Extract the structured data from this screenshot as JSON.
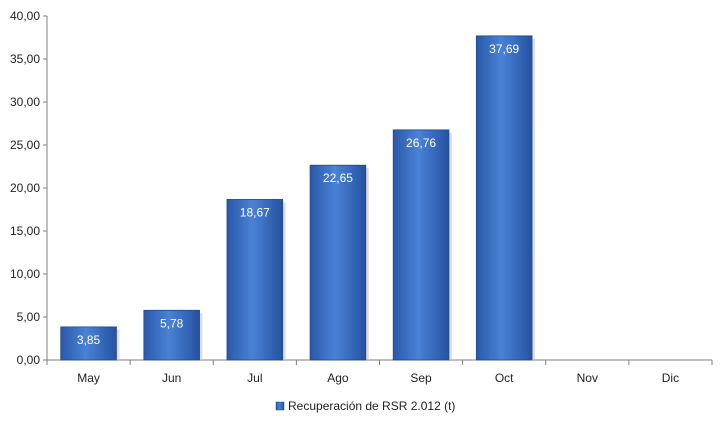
{
  "chart_data": {
    "type": "bar",
    "categories": [
      "May",
      "Jun",
      "Jul",
      "Ago",
      "Sep",
      "Oct",
      "Nov",
      "Dic"
    ],
    "series": [
      {
        "name": "Recuperación de RSR 2.012 (t)",
        "values": [
          3.85,
          5.78,
          18.67,
          22.65,
          26.76,
          37.69,
          null,
          null
        ],
        "data_labels": [
          "3,85",
          "5,78",
          "18,67",
          "22,65",
          "26,76",
          "37,69",
          "",
          ""
        ],
        "color": "#3a6fc4"
      }
    ],
    "ylim": [
      0,
      40
    ],
    "yticks": [
      0,
      5,
      10,
      15,
      20,
      25,
      30,
      35,
      40
    ],
    "ytick_labels": [
      "0,00",
      "5,00",
      "10,00",
      "15,00",
      "20,00",
      "25,00",
      "30,00",
      "35,00",
      "40,00"
    ],
    "grid": false,
    "legend_position": "bottom-center"
  }
}
